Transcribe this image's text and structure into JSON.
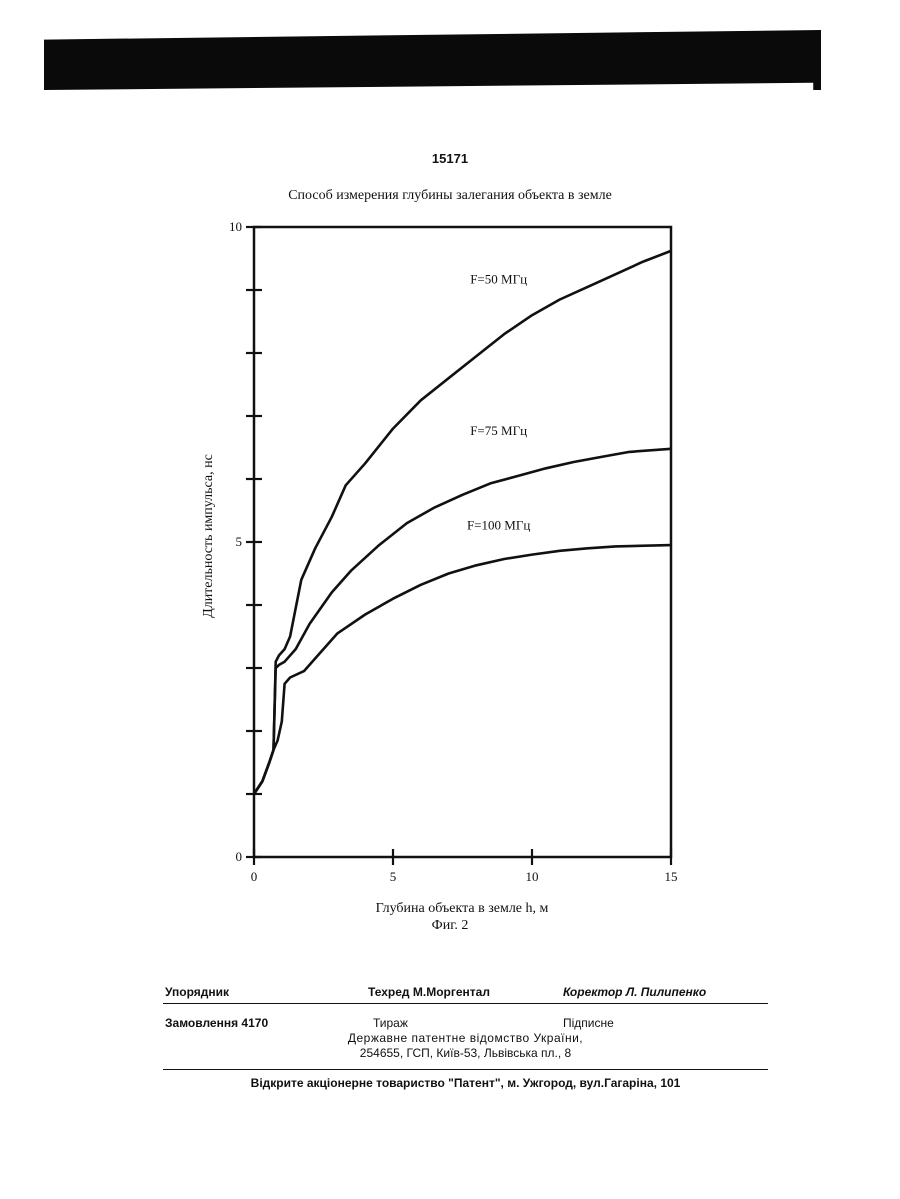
{
  "header": {
    "page_number": "15171",
    "chart_title": "Способ измерения глубины залегания объекта в земле"
  },
  "figure_label": "Фиг. 2",
  "chart_data": {
    "type": "line",
    "title": "Способ измерения глубины залегания объекта в земле",
    "xlabel": "Глубина объекта в земле  h, м",
    "ylabel": "Длительность импульса, нс",
    "xlim": [
      0,
      15
    ],
    "ylim": [
      0,
      10
    ],
    "x_ticks": [
      0,
      5,
      10,
      15
    ],
    "y_ticks": [
      0,
      5,
      10
    ],
    "y_minor_ticks": [
      1,
      2,
      3,
      4,
      6,
      7,
      8,
      9
    ],
    "grid": false,
    "colors": {
      "line": "#111111",
      "axis": "#111111"
    },
    "series": [
      {
        "name": "F=50 МГц",
        "label_at": [
          8.8,
          9.1
        ],
        "points": [
          [
            0,
            1
          ],
          [
            0.3,
            1.2
          ],
          [
            0.55,
            1.5
          ],
          [
            0.7,
            1.7
          ],
          [
            0.78,
            3.1
          ],
          [
            0.9,
            3.2
          ],
          [
            1.1,
            3.3
          ],
          [
            1.3,
            3.5
          ],
          [
            1.7,
            4.4
          ],
          [
            2.2,
            4.9
          ],
          [
            2.8,
            5.4
          ],
          [
            3.3,
            5.9
          ],
          [
            4.0,
            6.25
          ],
          [
            5.0,
            6.8
          ],
          [
            6.0,
            7.25
          ],
          [
            7.0,
            7.6
          ],
          [
            8.0,
            7.95
          ],
          [
            9.0,
            8.3
          ],
          [
            10.0,
            8.6
          ],
          [
            11.0,
            8.85
          ],
          [
            12.0,
            9.05
          ],
          [
            13.0,
            9.25
          ],
          [
            14.0,
            9.45
          ],
          [
            15.0,
            9.62
          ]
        ]
      },
      {
        "name": "F=75 МГц",
        "label_at": [
          8.8,
          6.7
        ],
        "points": [
          [
            0,
            1
          ],
          [
            0.3,
            1.2
          ],
          [
            0.55,
            1.5
          ],
          [
            0.7,
            1.7
          ],
          [
            0.78,
            3.0
          ],
          [
            0.9,
            3.05
          ],
          [
            1.1,
            3.1
          ],
          [
            1.5,
            3.3
          ],
          [
            2.0,
            3.7
          ],
          [
            2.8,
            4.2
          ],
          [
            3.5,
            4.55
          ],
          [
            4.5,
            4.95
          ],
          [
            5.5,
            5.3
          ],
          [
            6.5,
            5.55
          ],
          [
            7.5,
            5.75
          ],
          [
            8.5,
            5.93
          ],
          [
            9.5,
            6.05
          ],
          [
            10.5,
            6.17
          ],
          [
            11.5,
            6.27
          ],
          [
            12.5,
            6.35
          ],
          [
            13.5,
            6.43
          ],
          [
            15.0,
            6.48
          ]
        ]
      },
      {
        "name": "F=100 МГц",
        "label_at": [
          8.8,
          5.2
        ],
        "points": [
          [
            0,
            1
          ],
          [
            0.3,
            1.2
          ],
          [
            0.55,
            1.5
          ],
          [
            0.7,
            1.7
          ],
          [
            0.85,
            1.85
          ],
          [
            1.0,
            2.15
          ],
          [
            1.1,
            2.75
          ],
          [
            1.3,
            2.85
          ],
          [
            1.8,
            2.95
          ],
          [
            2.3,
            3.2
          ],
          [
            3.0,
            3.55
          ],
          [
            4.0,
            3.85
          ],
          [
            5.0,
            4.1
          ],
          [
            6.0,
            4.32
          ],
          [
            7.0,
            4.5
          ],
          [
            8.0,
            4.63
          ],
          [
            9.0,
            4.73
          ],
          [
            10.0,
            4.8
          ],
          [
            11.0,
            4.86
          ],
          [
            12.0,
            4.9
          ],
          [
            13.0,
            4.93
          ],
          [
            15.0,
            4.95
          ]
        ]
      }
    ]
  },
  "footer": {
    "compiler": "Упорядник",
    "tech_editor": "Техред М.Моргентал",
    "corrector": "Коректор  Л. Пилипенко",
    "order": "Замовлення 4170",
    "circulation": "Тираж",
    "signed": "Підписне",
    "agency": "Державне  патентне  відомство  України,",
    "address": "254655, ГСП, Київ-53, Львівська пл., 8",
    "publisher": "Відкрите акціонерне товариство  \"Патент\", м. Ужгород, вул.Гагаріна, 101"
  }
}
